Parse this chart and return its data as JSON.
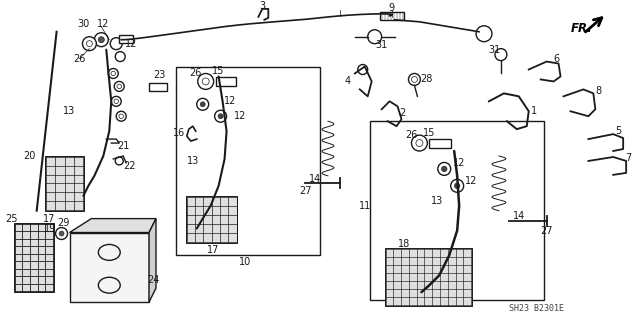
{
  "bg_color": "#ffffff",
  "line_color": "#1a1a1a",
  "text_color": "#1a1a1a",
  "diagram_code": "SH23 B2301E",
  "fr_label": "FR.",
  "lw_main": 1.0,
  "lw_thin": 0.6,
  "lw_heavy": 1.5,
  "figsize": [
    6.4,
    3.19
  ],
  "dpi": 100
}
